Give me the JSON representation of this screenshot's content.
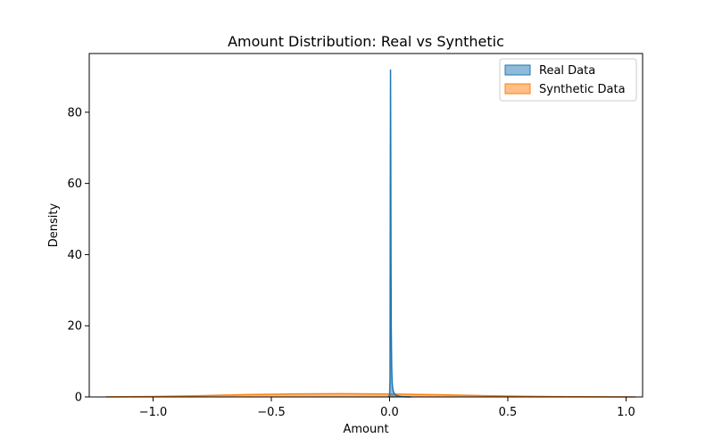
{
  "chart_data": {
    "type": "area",
    "title": "Amount Distribution: Real vs Synthetic",
    "xlabel": "Amount",
    "ylabel": "Density",
    "xlim": [
      -1.27,
      1.07
    ],
    "ylim": [
      0,
      96.5
    ],
    "xticks": [
      -1.0,
      -0.5,
      0.0,
      0.5,
      1.0
    ],
    "xtick_labels": [
      "−1.0",
      "−0.5",
      "0.0",
      "0.5",
      "1.0"
    ],
    "yticks": [
      0,
      20,
      40,
      60,
      80
    ],
    "ytick_labels": [
      "0",
      "20",
      "40",
      "60",
      "80"
    ],
    "grid": false,
    "legend_position": "top-right",
    "series": [
      {
        "name": "Real Data",
        "color": "#1f77b4",
        "x": [
          -0.005,
          0.0,
          0.002,
          0.003,
          0.004,
          0.005,
          0.006,
          0.007,
          0.009,
          0.011,
          0.013,
          0.016,
          0.02,
          0.025,
          0.03,
          0.04,
          0.05,
          0.07,
          0.09
        ],
        "y": [
          0,
          0.5,
          5,
          55,
          92,
          70,
          40,
          20,
          8,
          4,
          2.5,
          1.5,
          1.0,
          0.6,
          0.4,
          0.2,
          0.1,
          0.04,
          0.0
        ]
      },
      {
        "name": "Synthetic Data",
        "color": "#ff7f0e",
        "x": [
          -1.2,
          -1.0,
          -0.8,
          -0.6,
          -0.4,
          -0.2,
          0.0,
          0.2,
          0.4,
          0.6,
          0.8,
          1.0,
          1.04
        ],
        "y": [
          0.02,
          0.12,
          0.35,
          0.65,
          0.85,
          0.9,
          0.82,
          0.62,
          0.35,
          0.15,
          0.05,
          0.01,
          0.005
        ]
      }
    ]
  }
}
